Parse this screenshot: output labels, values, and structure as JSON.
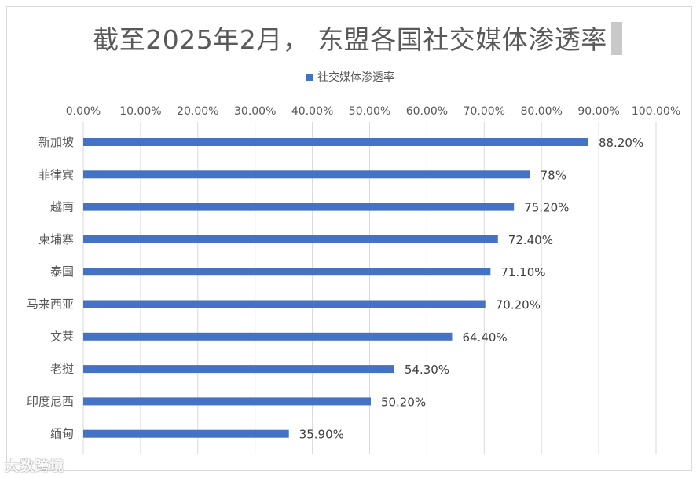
{
  "chart_data": {
    "type": "bar",
    "orientation": "horizontal",
    "title": "截至2025年2月， 东盟各国社交媒体渗透率",
    "legend": [
      "社交媒体渗透率"
    ],
    "legend_position": "top",
    "categories": [
      "新加坡",
      "菲律宾",
      "越南",
      "柬埔寨",
      "泰国",
      "马来西亚",
      "文莱",
      "老挝",
      "印度尼西",
      "缅甸"
    ],
    "series": [
      {
        "name": "社交媒体渗透率",
        "values": [
          88.2,
          78,
          75.2,
          72.4,
          71.1,
          70.2,
          64.4,
          54.3,
          50.2,
          35.9
        ],
        "labels": [
          "88.20%",
          "78%",
          "75.20%",
          "72.40%",
          "71.10%",
          "70.20%",
          "64.40%",
          "54.30%",
          "50.20%",
          "35.90%"
        ]
      }
    ],
    "x_ticks": [
      "0.00%",
      "10.00%",
      "20.00%",
      "30.00%",
      "40.00%",
      "50.00%",
      "60.00%",
      "70.00%",
      "80.00%",
      "90.00%",
      "100.00%"
    ],
    "xlim": [
      0,
      100
    ],
    "axis_position": "top",
    "grid": true,
    "bar_color": "#4472c4",
    "grid_color": "#d9d9d9"
  },
  "watermark": "大数跨境"
}
